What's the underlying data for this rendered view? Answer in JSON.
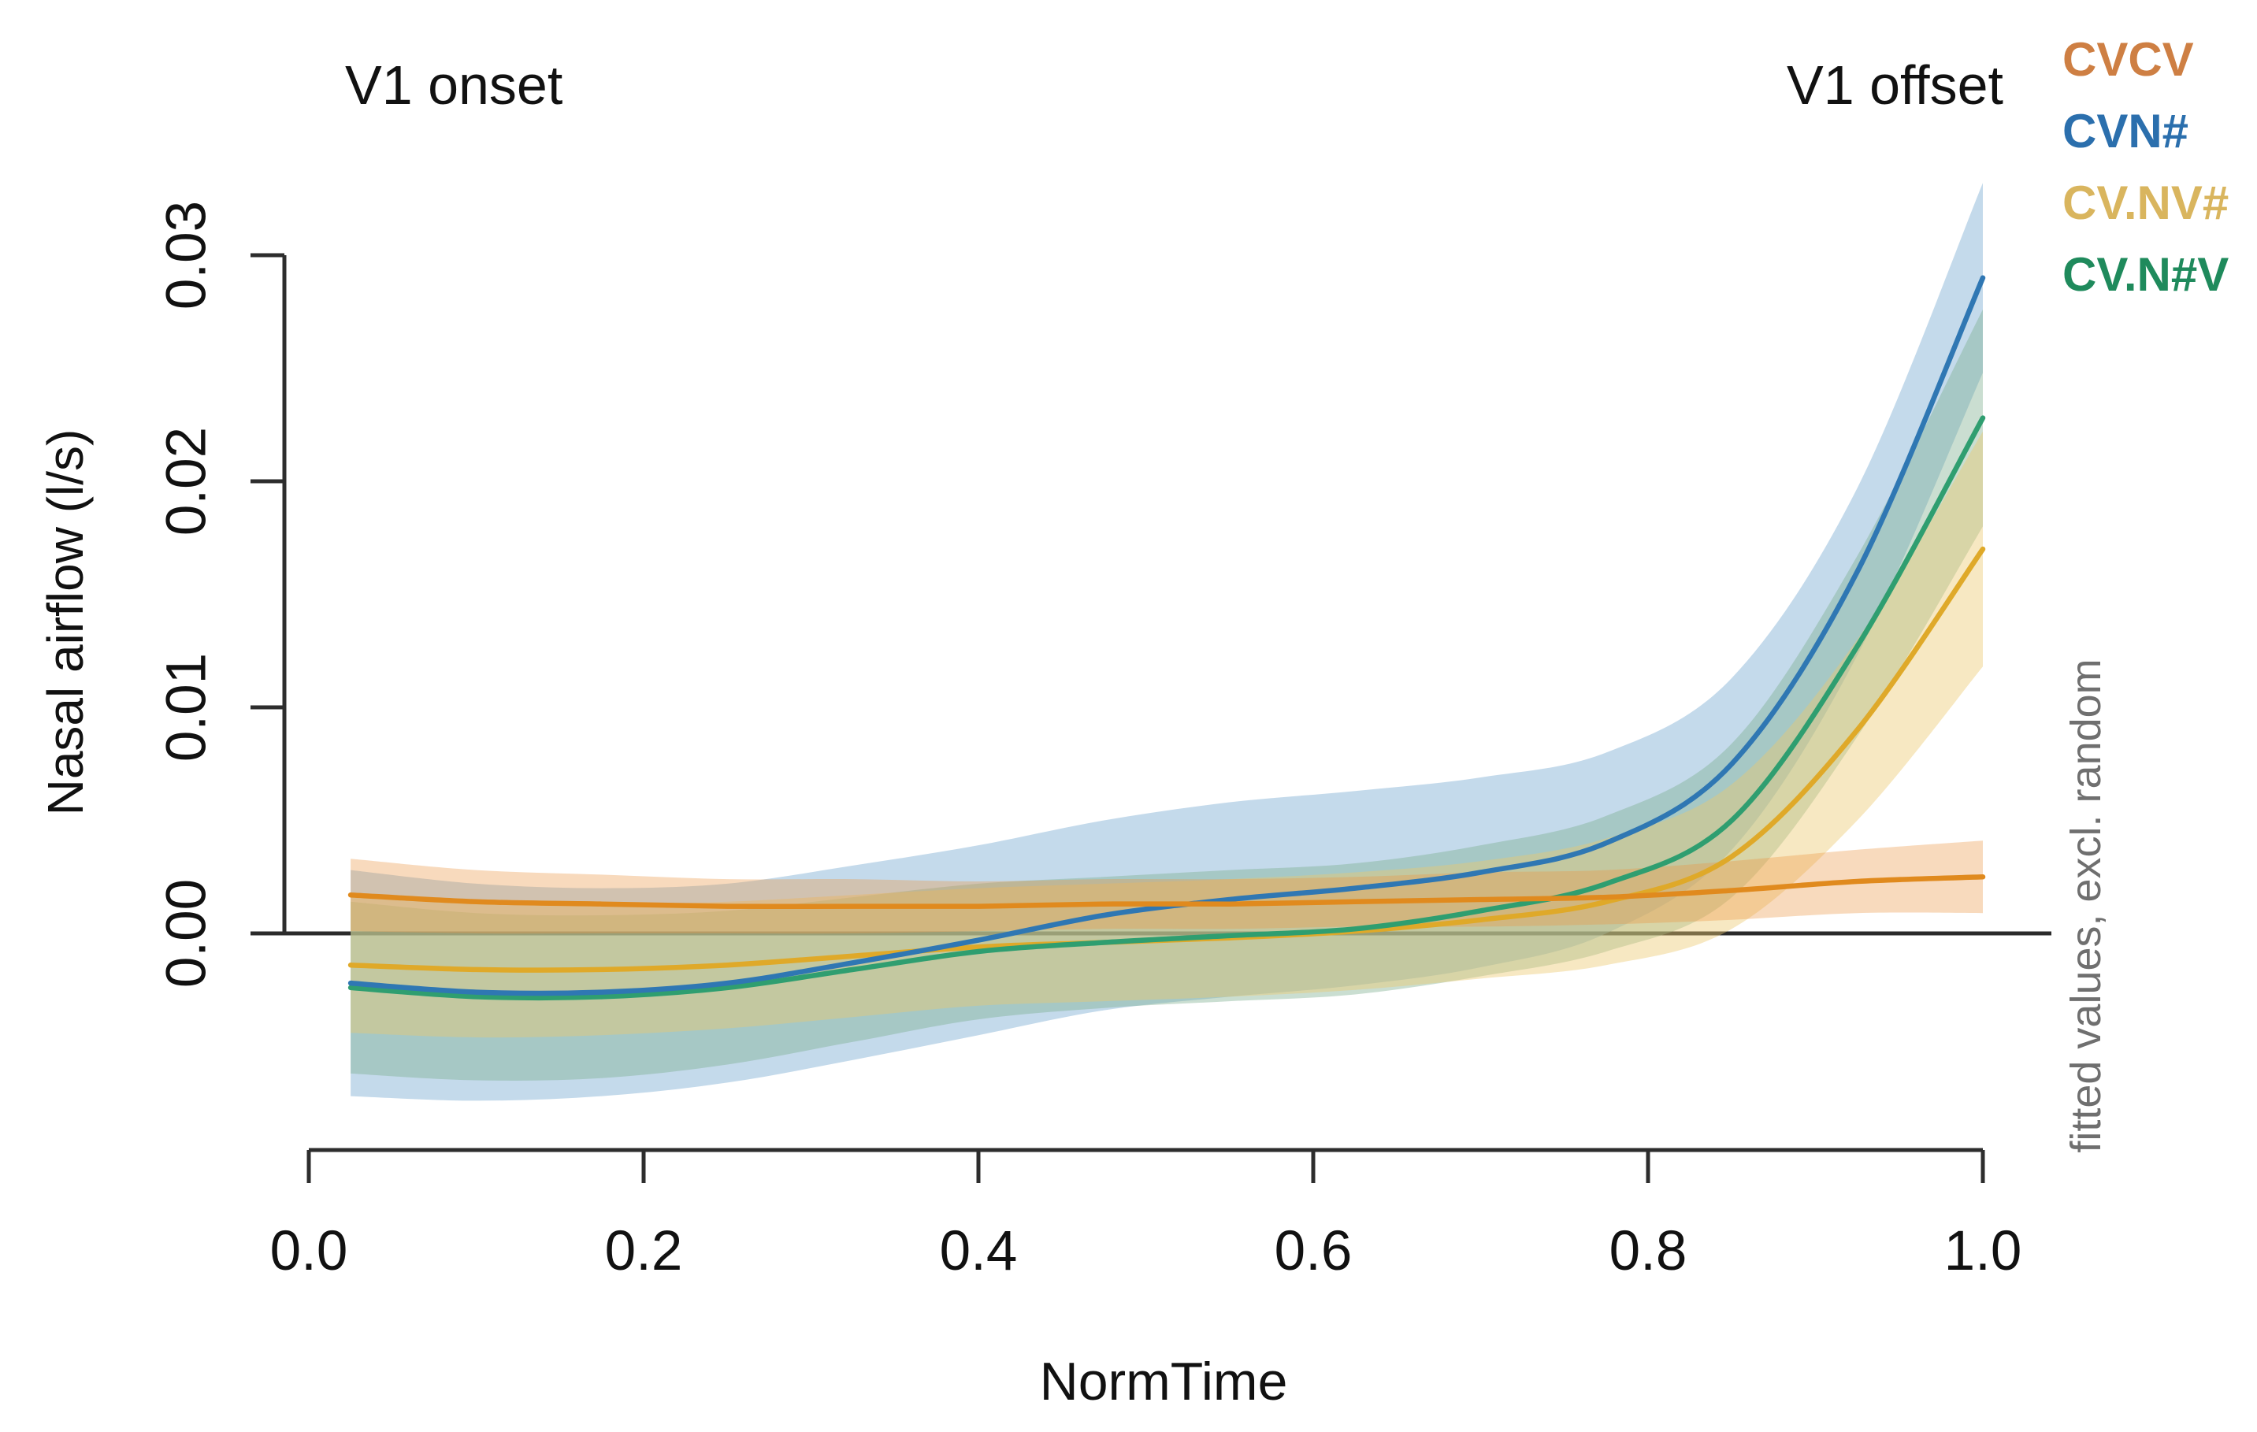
{
  "annotations": {
    "left": "V1 onset",
    "right": "V1 offset"
  },
  "side_note": "fitted values, excl. random",
  "legend": [
    {
      "label": "CVCV",
      "color": "#CE7F43"
    },
    {
      "label": "CVN#",
      "color": "#2B6FAD"
    },
    {
      "label": "CV.NV#",
      "color": "#D9B55E"
    },
    {
      "label": "CV.N#V",
      "color": "#1F8A5C"
    }
  ],
  "x_axis": {
    "title": "NormTime",
    "ticks": [
      "0.0",
      "0.2",
      "0.4",
      "0.6",
      "0.8",
      "1.0"
    ]
  },
  "y_axis": {
    "title": "Nasal airflow (l/s)",
    "ticks": [
      "0.00",
      "0.01",
      "0.02",
      "0.03"
    ]
  },
  "chart_data": {
    "type": "line",
    "title": "",
    "xlabel": "NormTime",
    "ylabel": "Nasal airflow (l/s)",
    "xlim": [
      0,
      1
    ],
    "ylim": [
      -0.008,
      0.033
    ],
    "x_ticks": [
      0.0,
      0.2,
      0.4,
      0.6,
      0.8,
      1.0
    ],
    "y_ticks": [
      0.0,
      0.01,
      0.02,
      0.03
    ],
    "grid": false,
    "zero_line": true,
    "legend_position": "top-right",
    "bands": "pointwise confidence bands around each smooth",
    "x": [
      0.025,
      0.1,
      0.175,
      0.25,
      0.325,
      0.4,
      0.475,
      0.55,
      0.625,
      0.7,
      0.775,
      0.85,
      0.925,
      1.0
    ],
    "series": [
      {
        "name": "CVCV",
        "color": "#E08A1E",
        "band_color": "rgba(235,150,66,0.35)",
        "values": [
          0.0017,
          0.0014,
          0.0013,
          0.0012,
          0.0012,
          0.0012,
          0.0013,
          0.0013,
          0.0014,
          0.0015,
          0.0016,
          0.0019,
          0.0023,
          0.0025
        ],
        "ci": [
          0.0016,
          0.0014,
          0.0013,
          0.0012,
          0.0012,
          0.0011,
          0.0011,
          0.0011,
          0.0011,
          0.0012,
          0.0012,
          0.0013,
          0.0014,
          0.0016
        ]
      },
      {
        "name": "CVN#",
        "color": "#2F77B3",
        "band_color": "rgba(125,173,211,0.45)",
        "values": [
          -0.0022,
          -0.0026,
          -0.0026,
          -0.0022,
          -0.0013,
          -0.0003,
          0.0008,
          0.0015,
          0.002,
          0.0027,
          0.004,
          0.0075,
          0.016,
          0.029
        ],
        "ci": [
          0.005,
          0.0048,
          0.0046,
          0.0044,
          0.0043,
          0.0042,
          0.0042,
          0.0043,
          0.0043,
          0.0042,
          0.004,
          0.0038,
          0.0037,
          0.0042
        ]
      },
      {
        "name": "CV.NV#",
        "color": "#DFA929",
        "band_color": "rgba(237,200,110,0.42)",
        "values": [
          -0.0014,
          -0.0016,
          -0.0016,
          -0.0014,
          -0.001,
          -0.0006,
          -0.0004,
          -0.0002,
          0.0001,
          0.0006,
          0.0014,
          0.0034,
          0.009,
          0.017
        ],
        "ci": [
          0.003,
          0.003,
          0.0029,
          0.0028,
          0.0027,
          0.0026,
          0.0026,
          0.0026,
          0.0026,
          0.0026,
          0.0028,
          0.0032,
          0.004,
          0.0052
        ]
      },
      {
        "name": "CV.N#V",
        "color": "#2F9E70",
        "band_color": "rgba(123,173,140,0.40)",
        "values": [
          -0.0024,
          -0.0028,
          -0.0028,
          -0.0024,
          -0.0016,
          -0.0008,
          -0.0004,
          -0.0001,
          0.0002,
          0.001,
          0.0022,
          0.005,
          0.0127,
          0.0228
        ],
        "ci": [
          0.0038,
          0.0037,
          0.0036,
          0.0034,
          0.0032,
          0.003,
          0.0029,
          0.0029,
          0.0029,
          0.0029,
          0.003,
          0.0034,
          0.004,
          0.0048
        ]
      }
    ]
  }
}
